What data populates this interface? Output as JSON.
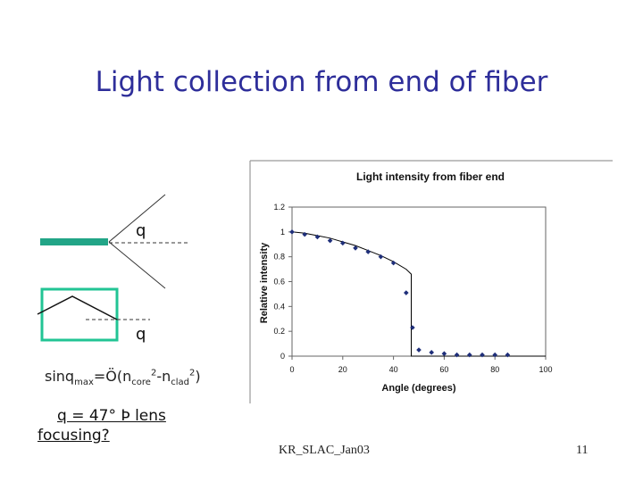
{
  "slide": {
    "title": "Light collection from end of fiber",
    "theta_symbol_1": "q",
    "theta_symbol_2": "q",
    "formula": {
      "prefix": "sinq",
      "sub_max": "max",
      "eq": "=",
      "sqrt": "Ö",
      "open": "(n",
      "sub_core": "core",
      "sup_core": "2",
      "minus": "-n",
      "sub_clad": "clad",
      "sup_clad": "2",
      "close": ")"
    },
    "answer_line1": "q = 47° Þ lens",
    "answer_line2": "focusing?",
    "footer_left": "KR_SLAC_Jan03",
    "footer_right": "11"
  },
  "chart_data": {
    "type": "scatter",
    "title": "Light intensity from fiber end",
    "xlabel": "Angle (degrees)",
    "ylabel": "Relative intensity",
    "xlim": [
      0,
      100
    ],
    "ylim": [
      0,
      1.2
    ],
    "xticks": [
      "0",
      "20",
      "40",
      "60",
      "80",
      "100"
    ],
    "yticks": [
      "0",
      "0.2",
      "0.4",
      "0.6",
      "0.8",
      "1",
      "1.2"
    ],
    "grid": false,
    "legend": "none",
    "series": [
      {
        "color": "#1f2f7a",
        "x": [
          0,
          5,
          10,
          15,
          20,
          25,
          30,
          35,
          40,
          45,
          47.5,
          50,
          55,
          60,
          65,
          70,
          75,
          80,
          85
        ],
        "y": [
          1.0,
          0.98,
          0.96,
          0.93,
          0.91,
          0.87,
          0.84,
          0.8,
          0.75,
          0.51,
          0.23,
          0.05,
          0.03,
          0.02,
          0.01,
          0.01,
          0.01,
          0.01,
          0.01
        ]
      }
    ],
    "curve": {
      "color": "#000000",
      "x": [
        0,
        5,
        10,
        15,
        20,
        25,
        30,
        35,
        40,
        45,
        47,
        47,
        48,
        100
      ],
      "y": [
        1.0,
        0.99,
        0.97,
        0.95,
        0.92,
        0.89,
        0.85,
        0.81,
        0.76,
        0.7,
        0.66,
        0.0,
        0.0,
        0.0
      ]
    }
  }
}
